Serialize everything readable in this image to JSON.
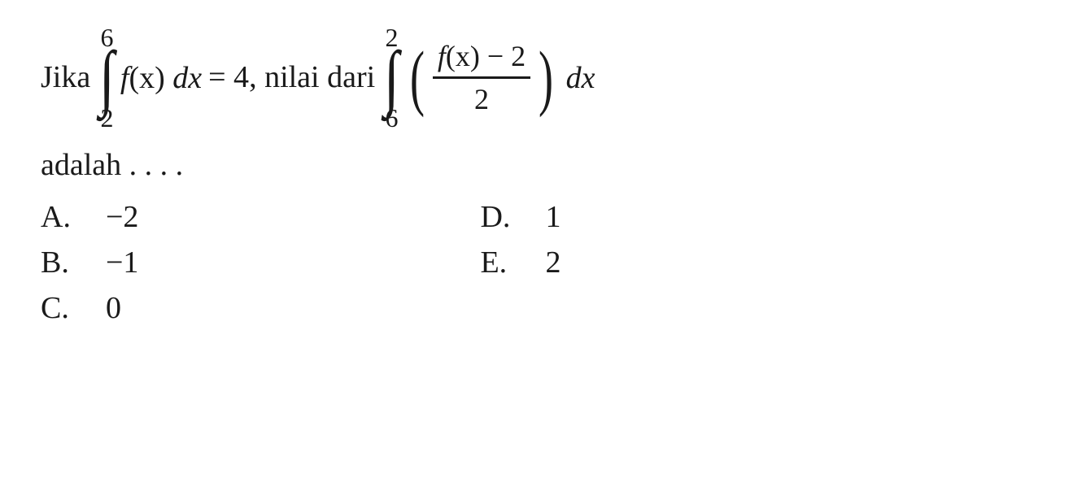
{
  "question": {
    "prefix": "Jika",
    "integral1": {
      "upper": "6",
      "lower": "2",
      "integrand_fx": "f",
      "integrand_var": "(x)",
      "dx": "dx"
    },
    "equals": "= 4",
    "middle_text": ", nilai dari",
    "integral2": {
      "upper": "2",
      "lower": "6",
      "fraction_num_fx": "f",
      "fraction_num_rest": "(x) − 2",
      "fraction_den": "2",
      "dx": "dx"
    },
    "suffix": "adalah . . . ."
  },
  "options": {
    "colA": [
      {
        "letter": "A.",
        "value": "−2"
      },
      {
        "letter": "B.",
        "value": "−1"
      },
      {
        "letter": "C.",
        "value": "0"
      }
    ],
    "colB": [
      {
        "letter": "D.",
        "value": "1"
      },
      {
        "letter": "E.",
        "value": "2"
      }
    ]
  },
  "colors": {
    "text": "#1a1a1a",
    "background": "#ffffff"
  },
  "fontsize": {
    "main": 38,
    "integral": 90,
    "limits": 32
  }
}
